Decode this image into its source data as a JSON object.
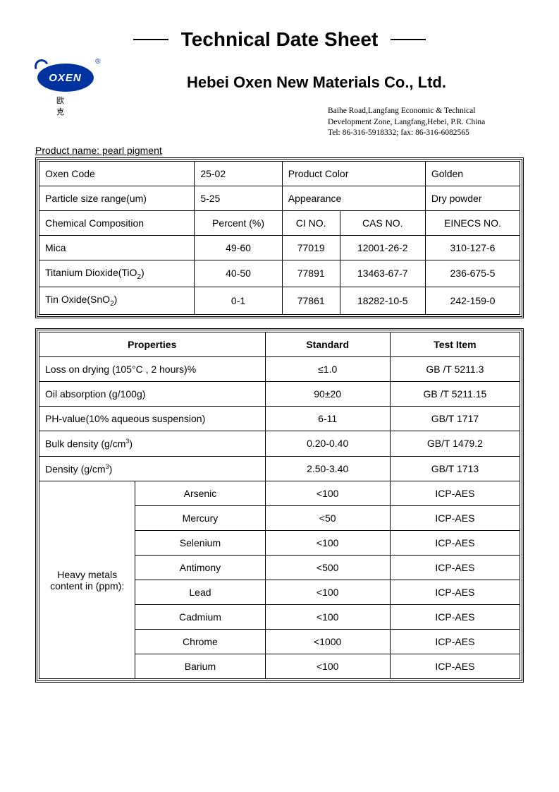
{
  "title": "Technical Date Sheet",
  "logo": {
    "brand": "OXEN",
    "cn": "欧 克",
    "reg": "®"
  },
  "company": "Hebei Oxen New Materials Co., Ltd.",
  "address": {
    "line1": "Baihe Road,Langfang Economic & Technical",
    "line2": "Development Zone, Langfang,Hebei, P.R. China",
    "line3": "Tel: 86-316-5918332;     fax: 86-316-6082565"
  },
  "product_name_label": "Product name: pearl pigment",
  "table1": {
    "r1": {
      "c1": "Oxen Code",
      "c2": "25-02",
      "c3": "Product Color",
      "c4": "Golden"
    },
    "r2": {
      "c1": "Particle size range(um)",
      "c2": "5-25",
      "c3": "Appearance",
      "c4": "Dry powder"
    },
    "hdr": {
      "c1": "Chemical Composition",
      "c2": "Percent (%)",
      "c3": "CI NO.",
      "c4": "CAS NO.",
      "c5": "EINECS NO."
    },
    "rows": [
      {
        "name": "Mica",
        "pct": "49-60",
        "ci": "77019",
        "cas": "12001-26-2",
        "ein": "310-127-6"
      },
      {
        "name_html": "Titanium Dioxide(TiO<sub>2</sub>)",
        "pct": "40-50",
        "ci": "77891",
        "cas": "13463-67-7",
        "ein": "236-675-5"
      },
      {
        "name_html": "Tin Oxide(SnO<sub>2</sub>)",
        "pct": "0-1",
        "ci": "77861",
        "cas": "18282-10-5",
        "ein": "242-159-0"
      }
    ]
  },
  "table2": {
    "hdr": {
      "c1": "Properties",
      "c2": "Standard",
      "c3": "Test Item"
    },
    "rows": [
      {
        "p": "Loss on drying (105°C , 2 hours)%",
        "s": "≤1.0",
        "t": "GB /T 5211.3"
      },
      {
        "p": "Oil absorption   (g/100g)",
        "s": "90±20",
        "t": "GB /T 5211.15"
      },
      {
        "p": "PH-value(10% aqueous suspension)",
        "s": "6-11",
        "t": "GB/T 1717"
      },
      {
        "p_html": "Bulk density (g/cm<sup>3</sup>)",
        "s": "0.20-0.40",
        "t": "GB/T 1479.2"
      },
      {
        "p_html": "Density (g/cm<sup>3</sup>)",
        "s": "2.50-3.40",
        "t": "GB/T 1713"
      }
    ],
    "heavy_label": "Heavy metals content in (ppm):",
    "heavy": [
      {
        "n": "Arsenic",
        "s": "<100",
        "t": "ICP-AES"
      },
      {
        "n": "Mercury",
        "s": "<50",
        "t": "ICP-AES"
      },
      {
        "n": "Selenium",
        "s": "<100",
        "t": "ICP-AES"
      },
      {
        "n": "Antimony",
        "s": "<500",
        "t": "ICP-AES"
      },
      {
        "n": "Lead",
        "s": "<100",
        "t": "ICP-AES"
      },
      {
        "n": "Cadmium",
        "s": "<100",
        "t": "ICP-AES"
      },
      {
        "n": "Chrome",
        "s": "<1000",
        "t": "ICP-AES"
      },
      {
        "n": "Barium",
        "s": "<100",
        "t": "ICP-AES"
      }
    ]
  }
}
